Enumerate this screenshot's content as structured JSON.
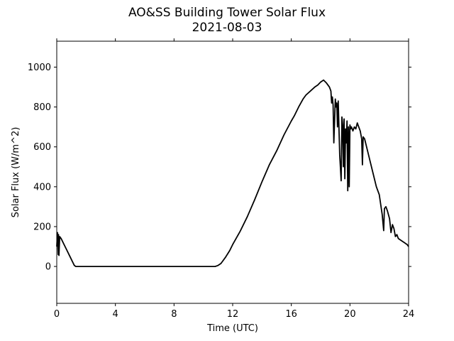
{
  "chart_data": {
    "type": "line",
    "title": "AO&SS Building Tower Solar Flux",
    "subtitle": "2021-08-03",
    "xlabel": "Time (UTC)",
    "ylabel": "Solar Flux (W/m^2)",
    "xlim": [
      0,
      24
    ],
    "ylim": [
      -185,
      1130
    ],
    "xticks": [
      0,
      4,
      8,
      12,
      16,
      20,
      24
    ],
    "yticks": [
      0,
      200,
      400,
      600,
      800,
      1000
    ],
    "grid": false,
    "line_color": "#000000",
    "series": [
      {
        "x": [
          0,
          0.05,
          0.1,
          0.12,
          0.15,
          0.2,
          0.3,
          0.5,
          0.7,
          0.9,
          1.1,
          1.2,
          1.3,
          2,
          4,
          6,
          8,
          10,
          10.8,
          11.0,
          11.2,
          11.5,
          11.8,
          12.0,
          12.5,
          13.0,
          13.5,
          14.0,
          14.5,
          15.0,
          15.5,
          16.0,
          16.2,
          16.5,
          16.8,
          17.0,
          17.3,
          17.6,
          17.8,
          18.0,
          18.2,
          18.4,
          18.6,
          18.7,
          18.75,
          18.8,
          18.85,
          18.9,
          19.0,
          19.05,
          19.1,
          19.15,
          19.2,
          19.3,
          19.4,
          19.45,
          19.5,
          19.55,
          19.6,
          19.65,
          19.7,
          19.75,
          19.8,
          19.85,
          19.9,
          19.95,
          20.0,
          20.05,
          20.1,
          20.2,
          20.3,
          20.4,
          20.5,
          20.6,
          20.7,
          20.8,
          20.85,
          20.9,
          21.0,
          21.2,
          21.4,
          21.6,
          21.8,
          22.0,
          22.1,
          22.2,
          22.3,
          22.35,
          22.45,
          22.55,
          22.7,
          22.8,
          22.9,
          23.0,
          23.1,
          23.2,
          23.3,
          23.5,
          23.7,
          23.9,
          24.0
        ],
        "values": [
          100,
          170,
          60,
          160,
          55,
          150,
          140,
          110,
          80,
          50,
          20,
          5,
          0,
          0,
          0,
          0,
          0,
          0,
          0,
          5,
          15,
          45,
          80,
          110,
          175,
          250,
          335,
          425,
          510,
          580,
          660,
          730,
          755,
          800,
          840,
          860,
          880,
          900,
          910,
          925,
          935,
          920,
          900,
          880,
          820,
          850,
          810,
          620,
          840,
          800,
          820,
          700,
          830,
          560,
          430,
          750,
          710,
          500,
          740,
          440,
          690,
          620,
          730,
          380,
          700,
          400,
          710,
          690,
          700,
          680,
          700,
          690,
          720,
          700,
          680,
          640,
          510,
          650,
          640,
          580,
          520,
          460,
          400,
          360,
          310,
          260,
          180,
          290,
          300,
          280,
          240,
          170,
          210,
          190,
          150,
          160,
          140,
          130,
          120,
          110,
          100
        ]
      }
    ]
  }
}
